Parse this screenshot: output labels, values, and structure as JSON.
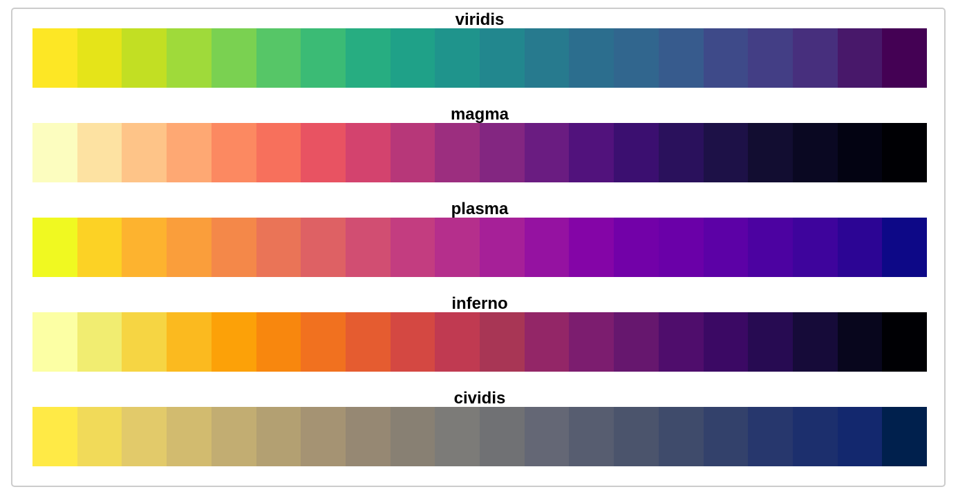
{
  "chart_data": [
    {
      "type": "heatmap",
      "title": "viridis",
      "colors": [
        "#fde725",
        "#e5e419",
        "#c2df23",
        "#9fda3a",
        "#7ad151",
        "#56c667",
        "#3bbb75",
        "#27ad81",
        "#1fa188",
        "#1f948c",
        "#22878e",
        "#277a8e",
        "#2c6e8e",
        "#31668e",
        "#375b8d",
        "#3e4a89",
        "#433e85",
        "#472f7d",
        "#48186a",
        "#440154"
      ]
    },
    {
      "type": "heatmap",
      "title": "magma",
      "colors": [
        "#fcfdbf",
        "#fde2a2",
        "#fec488",
        "#fea873",
        "#fc8961",
        "#f7705c",
        "#e85362",
        "#d3436e",
        "#b73779",
        "#9c2e7f",
        "#832681",
        "#6a1c81",
        "#51127c",
        "#3b0f70",
        "#2a115c",
        "#1d1147",
        "#120d31",
        "#0a0822",
        "#030312",
        "#000004"
      ]
    },
    {
      "type": "heatmap",
      "title": "plasma",
      "colors": [
        "#f0f921",
        "#fcd225",
        "#fdb32f",
        "#fa9e3b",
        "#f48849",
        "#ea7457",
        "#de6164",
        "#d14e72",
        "#c33d80",
        "#b52f8c",
        "#a62098",
        "#9512a1",
        "#8405a7",
        "#7201a8",
        "#6a00a8",
        "#5c01a6",
        "#4c02a1",
        "#3e049c",
        "#2c0594",
        "#0d0887"
      ]
    },
    {
      "type": "heatmap",
      "title": "inferno",
      "colors": [
        "#fcffa4",
        "#f1ed71",
        "#f6d543",
        "#fbba1f",
        "#fca108",
        "#f8870e",
        "#f1711f",
        "#e55c30",
        "#d44842",
        "#c03a51",
        "#a83655",
        "#932667",
        "#7c1d6f",
        "#66176e",
        "#4f0d6c",
        "#3b0964",
        "#270b52",
        "#160b39",
        "#08061d",
        "#000004"
      ]
    },
    {
      "type": "heatmap",
      "title": "cividis",
      "colors": [
        "#ffea46",
        "#f1da59",
        "#e2ca6a",
        "#d2bb6f",
        "#c2ad72",
        "#b3a072",
        "#a59373",
        "#968873",
        "#888073",
        "#7c7b78",
        "#707174",
        "#646775",
        "#575d70",
        "#4b546c",
        "#3f4b6b",
        "#33416b",
        "#27376d",
        "#1c2f6d",
        "#13286e",
        "#00204d"
      ]
    }
  ]
}
